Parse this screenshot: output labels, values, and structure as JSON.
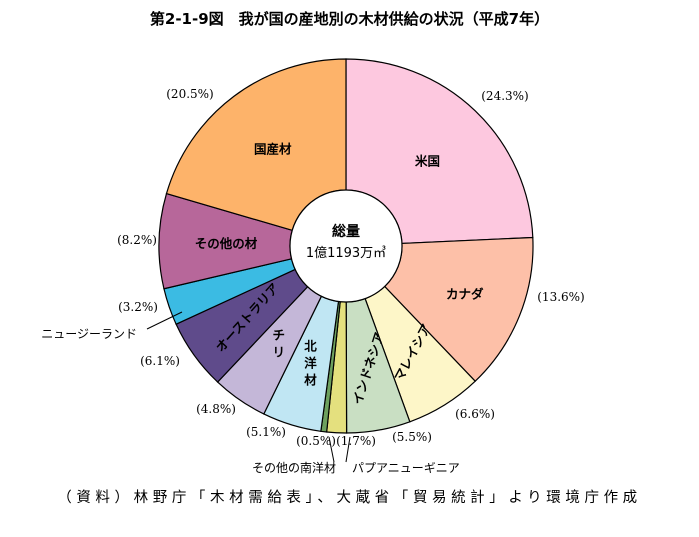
{
  "title": "第2-1-9図　我が国の産地別の木材供給の状況（平成7年）",
  "source": "（資料）林野庁「木材需給表」、大蔵省「貿易統計」より環境庁作成",
  "center_label": {
    "line1": "総量",
    "line2": "1億1193万㎥"
  },
  "chart_data": {
    "type": "donut",
    "title": "第2-1-9図　我が国の産地別の木材供給の状況（平成7年）",
    "total": "1億1193万㎥",
    "unit": "%",
    "slices": [
      {
        "name": "米国",
        "value": 24.3,
        "pct_label": "(24.3%)",
        "color": "#fdc8df"
      },
      {
        "name": "カナダ",
        "value": 13.6,
        "pct_label": "(13.6%)",
        "color": "#fdc0a8"
      },
      {
        "name": "マレイシア",
        "value": 6.6,
        "pct_label": "(6.6%)",
        "color": "#fdf6c8"
      },
      {
        "name": "インドネシア",
        "value": 5.5,
        "pct_label": "(5.5%)",
        "color": "#c9dfc3"
      },
      {
        "name": "パプアニューギニア",
        "value": 1.7,
        "pct_label": "(1.7%)",
        "color": "#e4e07e"
      },
      {
        "name": "その他の南洋材",
        "value": 0.5,
        "pct_label": "(0.5%)",
        "color": "#6da05e"
      },
      {
        "name": "北洋材",
        "value": 5.1,
        "pct_label": "(5.1%)",
        "color": "#c0e6f3"
      },
      {
        "name": "チリ",
        "value": 4.8,
        "pct_label": "(4.8%)",
        "color": "#c4b7d8"
      },
      {
        "name": "オーストラリア",
        "value": 6.1,
        "pct_label": "(6.1%)",
        "color": "#5f4b8b"
      },
      {
        "name": "ニュージーランド",
        "value": 3.2,
        "pct_label": "(3.2%)",
        "color": "#3bbbe3"
      },
      {
        "name": "その他の材",
        "value": 8.2,
        "pct_label": "(8.2%)",
        "color": "#b7679a"
      },
      {
        "name": "国産材",
        "value": 20.5,
        "pct_label": "(20.5%)",
        "color": "#fdb36a"
      }
    ]
  }
}
